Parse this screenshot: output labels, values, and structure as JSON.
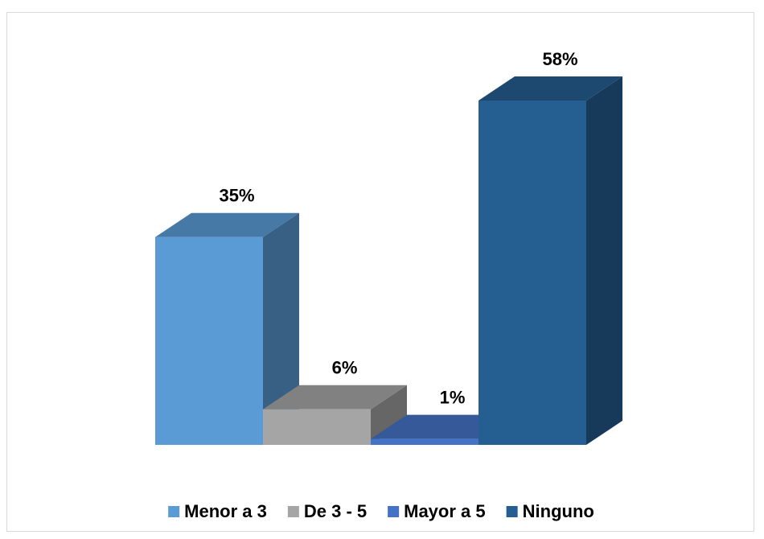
{
  "chart_data": {
    "type": "bar3d",
    "series": [
      {
        "name": "Menor a 3",
        "color": "#5b9bd5",
        "values": [
          35
        ],
        "value_labels": [
          "35%"
        ]
      },
      {
        "name": "De 3 - 5",
        "color": "#a5a5a5",
        "values": [
          6
        ],
        "value_labels": [
          "6%"
        ]
      },
      {
        "name": "Mayor a 5",
        "color": "#4472c4",
        "values": [
          1
        ],
        "value_labels": [
          "1%"
        ]
      },
      {
        "name": "Ninguno",
        "color": "#255e91",
        "values": [
          58
        ],
        "value_labels": [
          "58%"
        ]
      }
    ],
    "legend": "bottom"
  }
}
